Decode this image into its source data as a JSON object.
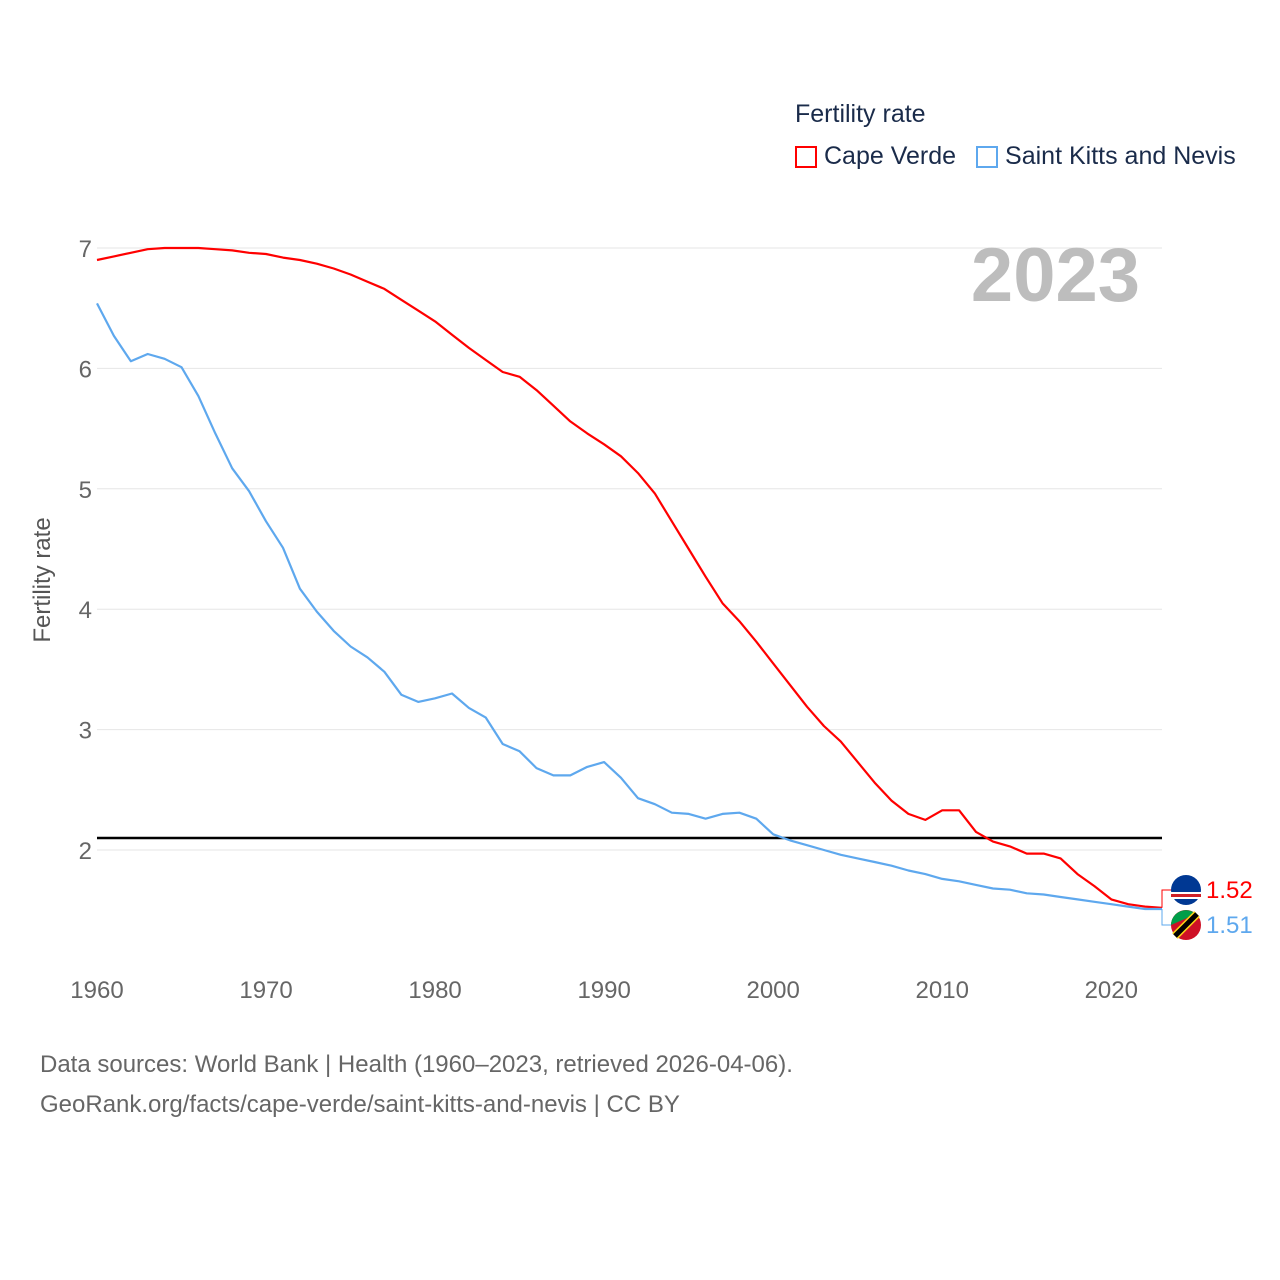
{
  "chart_data": {
    "type": "line",
    "title": "Fertility rate",
    "year_label": "2023",
    "ylabel": "Fertility rate",
    "xlabel": "",
    "xlim": [
      1960,
      2023
    ],
    "ylim": [
      1.5,
      7.1
    ],
    "x_ticks": [
      1960,
      1970,
      1980,
      1990,
      2000,
      2010,
      2020
    ],
    "y_ticks": [
      2,
      3,
      4,
      5,
      6,
      7
    ],
    "grid": true,
    "legend_position": "top-right",
    "reference_line": {
      "value": 2.1,
      "color": "#000000"
    },
    "x": [
      1960,
      1961,
      1962,
      1963,
      1964,
      1965,
      1966,
      1967,
      1968,
      1969,
      1970,
      1971,
      1972,
      1973,
      1974,
      1975,
      1976,
      1977,
      1978,
      1979,
      1980,
      1981,
      1982,
      1983,
      1984,
      1985,
      1986,
      1987,
      1988,
      1989,
      1990,
      1991,
      1992,
      1993,
      1994,
      1995,
      1996,
      1997,
      1998,
      1999,
      2000,
      2001,
      2002,
      2003,
      2004,
      2005,
      2006,
      2007,
      2008,
      2009,
      2010,
      2011,
      2012,
      2013,
      2014,
      2015,
      2016,
      2017,
      2018,
      2019,
      2020,
      2021,
      2022,
      2023
    ],
    "series": [
      {
        "name": "Cape Verde",
        "color": "#ff0000",
        "end_label": "1.52",
        "values": [
          6.9,
          6.93,
          6.96,
          6.99,
          7.0,
          7.0,
          7.0,
          6.99,
          6.98,
          6.96,
          6.95,
          6.92,
          6.9,
          6.87,
          6.83,
          6.78,
          6.72,
          6.66,
          6.57,
          6.48,
          6.39,
          6.28,
          6.17,
          6.07,
          5.97,
          5.93,
          5.82,
          5.69,
          5.56,
          5.46,
          5.37,
          5.27,
          5.13,
          4.96,
          4.73,
          4.5,
          4.27,
          4.05,
          3.9,
          3.73,
          3.55,
          3.37,
          3.19,
          3.03,
          2.9,
          2.73,
          2.56,
          2.41,
          2.3,
          2.25,
          2.33,
          2.33,
          2.15,
          2.07,
          2.03,
          1.97,
          1.97,
          1.93,
          1.8,
          1.7,
          1.59,
          1.55,
          1.53,
          1.52
        ]
      },
      {
        "name": "Saint Kitts and Nevis",
        "color": "#5ea8ee",
        "end_label": "1.51",
        "values": [
          6.54,
          6.27,
          6.06,
          6.12,
          6.08,
          6.01,
          5.77,
          5.46,
          5.17,
          4.98,
          4.73,
          4.51,
          4.17,
          3.98,
          3.82,
          3.69,
          3.6,
          3.48,
          3.29,
          3.23,
          3.26,
          3.3,
          3.18,
          3.1,
          2.88,
          2.82,
          2.68,
          2.62,
          2.62,
          2.69,
          2.73,
          2.6,
          2.43,
          2.38,
          2.31,
          2.3,
          2.26,
          2.3,
          2.31,
          2.26,
          2.13,
          2.08,
          2.04,
          2.0,
          1.96,
          1.93,
          1.9,
          1.87,
          1.83,
          1.8,
          1.76,
          1.74,
          1.71,
          1.68,
          1.67,
          1.64,
          1.63,
          1.61,
          1.59,
          1.57,
          1.55,
          1.53,
          1.51,
          1.51
        ]
      }
    ]
  },
  "source": {
    "line1": "Data sources: World Bank | Health (1960–2023, retrieved 2026-04-06).",
    "line2": "GeoRank.org/facts/cape-verde/saint-kitts-and-nevis | CC BY"
  }
}
